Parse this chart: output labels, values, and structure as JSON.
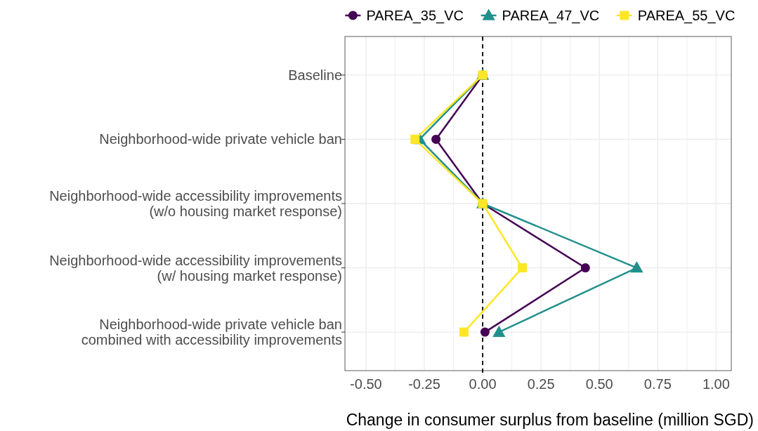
{
  "chart_data": {
    "type": "line",
    "orientation": "horizontal",
    "xlabel": "Change in consumer surplus from baseline (million SGD)",
    "categories": [
      "Baseline",
      "Neighborhood-wide private vehicle ban",
      "Neighborhood-wide accessibility improvements\n(w/o housing market response)",
      "Neighborhood-wide accessibility improvements\n(w/ housing market response)",
      "Neighborhood-wide private vehicle ban\ncombined with accessibility improvements"
    ],
    "series": [
      {
        "name": "PAREA_35_VC",
        "color": "#440154",
        "marker": "circle",
        "values": [
          0,
          -0.2,
          0,
          0.44,
          0.01
        ]
      },
      {
        "name": "PAREA_47_VC",
        "color": "#21908c",
        "marker": "triangle",
        "values": [
          0,
          -0.27,
          0,
          0.66,
          0.07
        ]
      },
      {
        "name": "PAREA_55_VC",
        "color": "#fde725",
        "marker": "square",
        "values": [
          0,
          -0.29,
          0,
          0.17,
          -0.08
        ]
      }
    ],
    "xlim": [
      -0.59,
      1.065
    ],
    "xticks": [
      {
        "value": -0.5,
        "label": "-0.50"
      },
      {
        "value": -0.375,
        "label": null
      },
      {
        "value": -0.25,
        "label": "-0.25"
      },
      {
        "value": -0.125,
        "label": null
      },
      {
        "value": 0,
        "label": "0.00"
      },
      {
        "value": 0.125,
        "label": null
      },
      {
        "value": 0.25,
        "label": "0.25"
      },
      {
        "value": 0.375,
        "label": null
      },
      {
        "value": 0.5,
        "label": "0.50"
      },
      {
        "value": 0.625,
        "label": null
      },
      {
        "value": 0.75,
        "label": "0.75"
      },
      {
        "value": 0.875,
        "label": null
      },
      {
        "value": 1,
        "label": "1.00"
      }
    ],
    "ref_lines": [
      {
        "axis": "x",
        "value": 0,
        "line_style": "dashed",
        "color": "#000000"
      }
    ],
    "grid": true,
    "legend": "top right",
    "line_style": "solid"
  }
}
